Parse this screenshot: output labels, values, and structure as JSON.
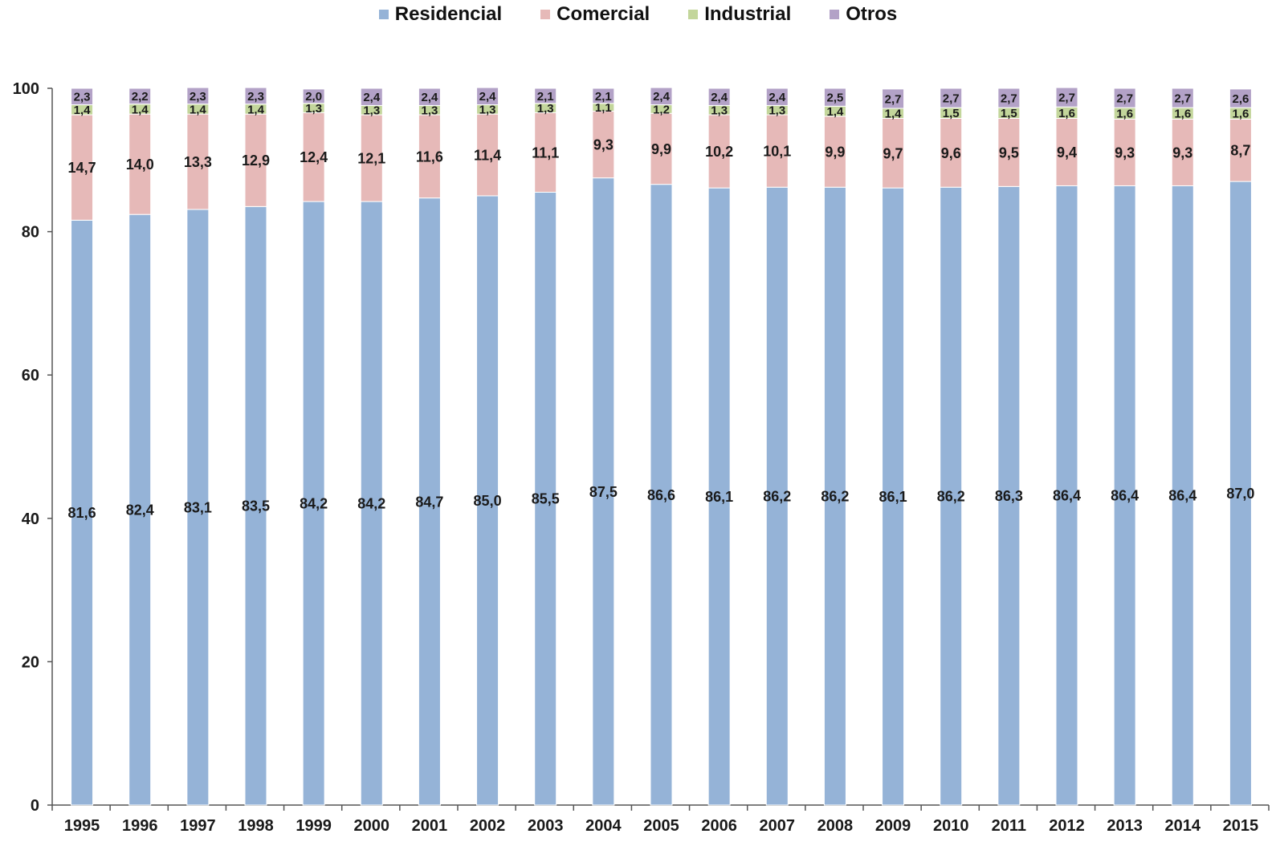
{
  "chart_data": {
    "type": "bar",
    "stacked": true,
    "legend_position": "top",
    "grid": false,
    "ylim": [
      0,
      100
    ],
    "yticks": [
      0,
      20,
      40,
      60,
      80,
      100
    ],
    "categories": [
      "1995",
      "1996",
      "1997",
      "1998",
      "1999",
      "2000",
      "2001",
      "2002",
      "2003",
      "2004",
      "2005",
      "2006",
      "2007",
      "2008",
      "2009",
      "2010",
      "2011",
      "2012",
      "2013",
      "2014",
      "2015"
    ],
    "series": [
      {
        "name": "Residencial",
        "color": "#95b3d7",
        "values": [
          81.6,
          82.4,
          83.1,
          83.5,
          84.2,
          84.2,
          84.7,
          85.0,
          85.5,
          87.5,
          86.6,
          86.1,
          86.2,
          86.2,
          86.1,
          86.2,
          86.3,
          86.4,
          86.4,
          86.4,
          87.0
        ],
        "labels": [
          "81,6",
          "82,4",
          "83,1",
          "83,5",
          "84,2",
          "84,2",
          "84,7",
          "85,0",
          "85,5",
          "87,5",
          "86,6",
          "86,1",
          "86,2",
          "86,2",
          "86,1",
          "86,2",
          "86,3",
          "86,4",
          "86,4",
          "86,4",
          "87,0"
        ]
      },
      {
        "name": "Comercial",
        "color": "#e6b9b8",
        "values": [
          14.7,
          14.0,
          13.3,
          12.9,
          12.4,
          12.1,
          11.6,
          11.4,
          11.1,
          9.3,
          9.9,
          10.2,
          10.1,
          9.9,
          9.7,
          9.6,
          9.5,
          9.4,
          9.3,
          9.3,
          8.7
        ],
        "labels": [
          "14,7",
          "14,0",
          "13,3",
          "12,9",
          "12,4",
          "12,1",
          "11,6",
          "11,4",
          "11,1",
          "9,3",
          "9,9",
          "10,2",
          "10,1",
          "9,9",
          "9,7",
          "9,6",
          "9,5",
          "9,4",
          "9,3",
          "9,3",
          "8,7"
        ]
      },
      {
        "name": "Industrial",
        "color": "#c3d69b",
        "values": [
          1.4,
          1.4,
          1.4,
          1.4,
          1.3,
          1.3,
          1.3,
          1.3,
          1.3,
          1.1,
          1.2,
          1.3,
          1.3,
          1.4,
          1.4,
          1.5,
          1.5,
          1.6,
          1.6,
          1.6,
          1.6
        ],
        "labels": [
          "1,4",
          "1,4",
          "1,4",
          "1,4",
          "1,3",
          "1,3",
          "1,3",
          "1,3",
          "1,3",
          "1,1",
          "1,2",
          "1,3",
          "1,3",
          "1,4",
          "1,4",
          "1,5",
          "1,5",
          "1,6",
          "1,6",
          "1,6",
          "1,6"
        ]
      },
      {
        "name": "Otros",
        "color": "#b3a2c7",
        "values": [
          2.3,
          2.2,
          2.3,
          2.3,
          2.0,
          2.4,
          2.4,
          2.4,
          2.1,
          2.1,
          2.4,
          2.4,
          2.4,
          2.5,
          2.7,
          2.7,
          2.7,
          2.7,
          2.7,
          2.7,
          2.6
        ],
        "labels": [
          "2,3",
          "2,2",
          "2,3",
          "2,3",
          "2,0",
          "2,4",
          "2,4",
          "2,4",
          "2,1",
          "2,1",
          "2,4",
          "2,4",
          "2,4",
          "2,5",
          "2,7",
          "2,7",
          "2,7",
          "2,7",
          "2,7",
          "2,7",
          "2,6"
        ]
      }
    ]
  }
}
